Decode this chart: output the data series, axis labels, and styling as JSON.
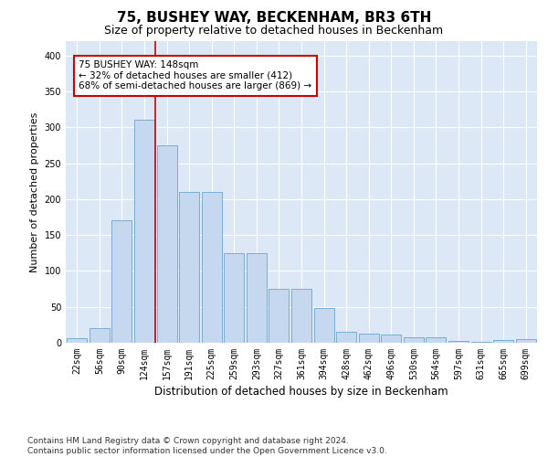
{
  "title": "75, BUSHEY WAY, BECKENHAM, BR3 6TH",
  "subtitle": "Size of property relative to detached houses in Beckenham",
  "xlabel": "Distribution of detached houses by size in Beckenham",
  "ylabel": "Number of detached properties",
  "categories": [
    "22sqm",
    "56sqm",
    "90sqm",
    "124sqm",
    "157sqm",
    "191sqm",
    "225sqm",
    "259sqm",
    "293sqm",
    "327sqm",
    "361sqm",
    "394sqm",
    "428sqm",
    "462sqm",
    "496sqm",
    "530sqm",
    "564sqm",
    "597sqm",
    "631sqm",
    "665sqm",
    "699sqm"
  ],
  "values": [
    7,
    20,
    170,
    310,
    275,
    210,
    210,
    125,
    125,
    75,
    75,
    48,
    15,
    13,
    12,
    8,
    8,
    3,
    1,
    4,
    5
  ],
  "bar_color": "#c5d8f0",
  "bar_edgecolor": "#7aadd4",
  "vline_color": "#cc0000",
  "annotation_text": "75 BUSHEY WAY: 148sqm\n← 32% of detached houses are smaller (412)\n68% of semi-detached houses are larger (869) →",
  "annotation_box_edgecolor": "#cc0000",
  "annotation_box_facecolor": "#ffffff",
  "ylim": [
    0,
    420
  ],
  "yticks": [
    0,
    50,
    100,
    150,
    200,
    250,
    300,
    350,
    400
  ],
  "footnote": "Contains HM Land Registry data © Crown copyright and database right 2024.\nContains public sector information licensed under the Open Government Licence v3.0.",
  "plot_background": "#dce8f5",
  "title_fontsize": 11,
  "subtitle_fontsize": 9,
  "xlabel_fontsize": 8.5,
  "ylabel_fontsize": 8,
  "tick_fontsize": 7,
  "footnote_fontsize": 6.5,
  "vline_bar_index": 3.5
}
